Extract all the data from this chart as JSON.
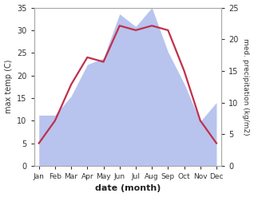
{
  "months": [
    "Jan",
    "Feb",
    "Mar",
    "Apr",
    "May",
    "Jun",
    "Jul",
    "Aug",
    "Sep",
    "Oct",
    "Nov",
    "Dec"
  ],
  "temperature": [
    5,
    10,
    18,
    24,
    23,
    31,
    30,
    31,
    30,
    21,
    10,
    5
  ],
  "precipitation": [
    8,
    8,
    11,
    16,
    17,
    24,
    22,
    25,
    18,
    13,
    7,
    10
  ],
  "temp_color": "#c0304a",
  "precip_fill_color": "#b8c4ee",
  "temp_ylim": [
    0,
    35
  ],
  "precip_ylim": [
    0,
    25
  ],
  "temp_yticks": [
    0,
    5,
    10,
    15,
    20,
    25,
    30,
    35
  ],
  "precip_yticks": [
    0,
    5,
    10,
    15,
    20,
    25
  ],
  "xlabel": "date (month)",
  "ylabel_left": "max temp (C)",
  "ylabel_right": "med. precipitation (kg/m2)",
  "background_color": "#ffffff",
  "line_width": 1.6
}
